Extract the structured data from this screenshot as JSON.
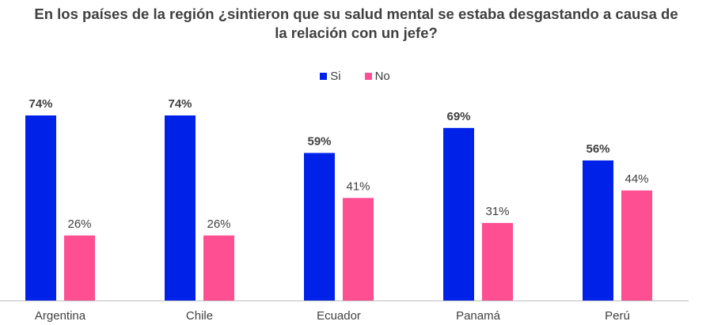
{
  "chart_data": {
    "type": "bar",
    "title": "En los países de la región ¿sintieron que su salud mental se estaba desgastando a causa de la relación con un jefe?",
    "xlabel": "",
    "ylabel": "",
    "categories": [
      "Argentina",
      "Chile",
      "Ecuador",
      "Panamá",
      "Perú"
    ],
    "series": [
      {
        "name": "Si",
        "color": "#0022e8",
        "values": [
          74,
          74,
          59,
          69,
          56
        ],
        "labels": [
          "74%",
          "74%",
          "59%",
          "69%",
          "56%"
        ]
      },
      {
        "name": "No",
        "color": "#ff4f93",
        "values": [
          26,
          26,
          41,
          31,
          44
        ],
        "labels": [
          "26%",
          "26%",
          "41%",
          "31%",
          "44%"
        ]
      }
    ],
    "ylim": [
      0,
      74
    ],
    "grid": false,
    "legend": "top-center"
  }
}
